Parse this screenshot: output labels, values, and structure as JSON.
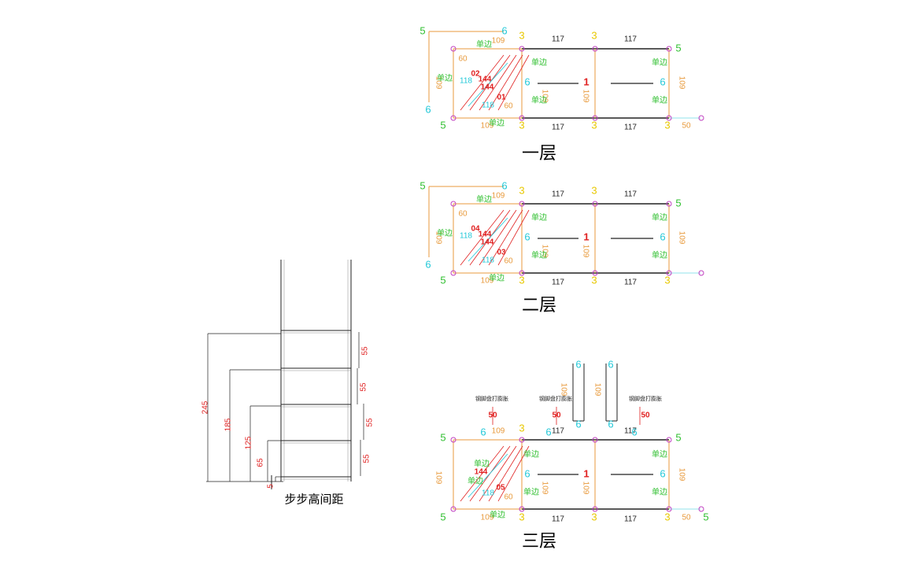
{
  "floors": [
    {
      "title": "一层",
      "labels": [
        "109",
        "117",
        "117",
        "109",
        "117",
        "117",
        "3",
        "3",
        "3",
        "3",
        "3",
        "5",
        "6",
        "6",
        "5",
        "5",
        "1",
        "6",
        "6",
        "109",
        "109",
        "109",
        "109",
        "60",
        "60",
        "144",
        "144",
        "118",
        "118",
        "02",
        "01",
        "单边",
        "单边",
        "单边",
        "单边",
        "单边",
        "单边",
        "单边",
        "50"
      ]
    },
    {
      "title": "二层",
      "labels": [
        "109",
        "117",
        "117",
        "109",
        "117",
        "117",
        "3",
        "3",
        "3",
        "3",
        "3",
        "5",
        "6",
        "6",
        "5",
        "5",
        "1",
        "6",
        "6",
        "109",
        "109",
        "109",
        "109",
        "60",
        "60",
        "144",
        "144",
        "118",
        "118",
        "04",
        "03",
        "单边",
        "单边",
        "单边",
        "单边",
        "单边",
        "单边",
        "单边"
      ]
    },
    {
      "title": "三层",
      "labels": [
        "109",
        "117",
        "117",
        "109",
        "117",
        "117",
        "3",
        "3",
        "3",
        "3",
        "5",
        "5",
        "5",
        "5",
        "1",
        "6",
        "6",
        "109",
        "109",
        "109",
        "109",
        "144",
        "05",
        "60",
        "118",
        "50",
        "50",
        "50",
        "50",
        "钢脚盘打膨胀",
        "钢脚盘打膨胀",
        "钢脚盘打膨胀",
        "6",
        "6",
        "6",
        "6",
        "6",
        "6",
        "6",
        "109",
        "109",
        "单边",
        "单边",
        "单边",
        "单边",
        "单边",
        "单边",
        "单边"
      ]
    }
  ],
  "elevation": {
    "caption": "步步高间距",
    "heights": [
      "245",
      "185",
      "125",
      "65",
      "5"
    ],
    "spacings": [
      "55",
      "55",
      "55",
      "55"
    ]
  }
}
